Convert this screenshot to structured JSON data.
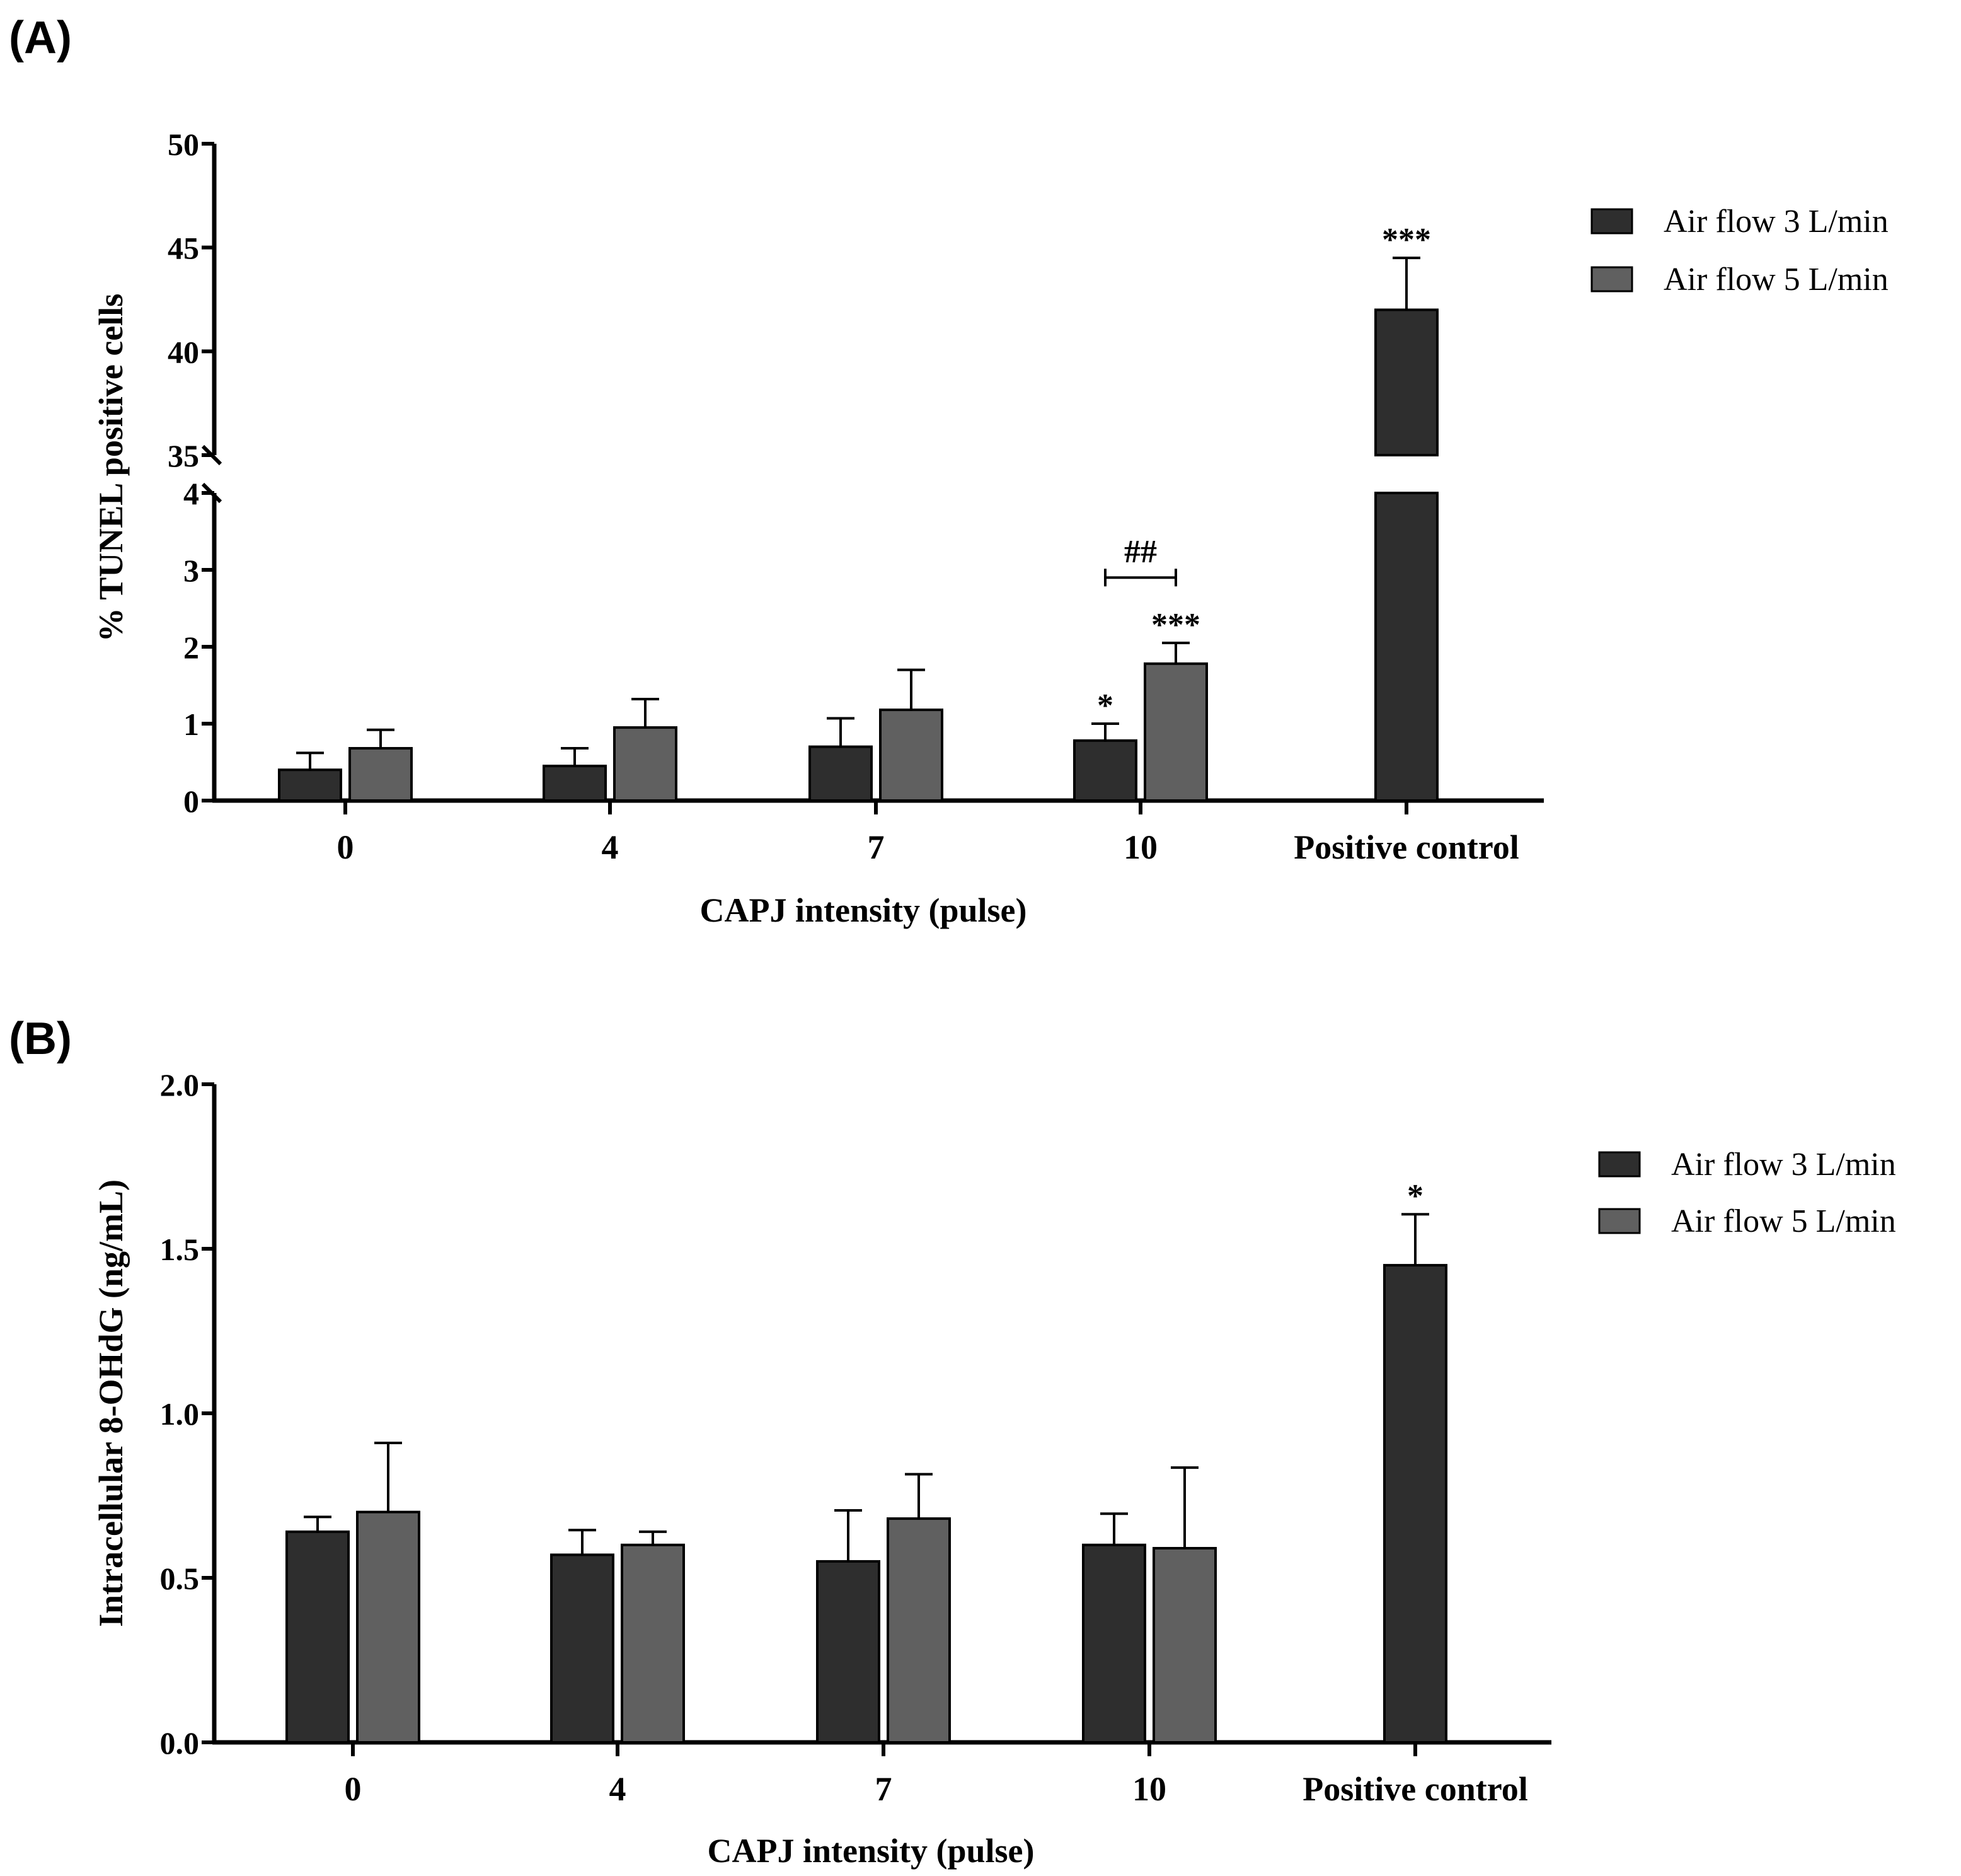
{
  "panels": [
    {
      "label": "(A)",
      "chart_data": {
        "type": "bar",
        "title": "",
        "xlabel": "CAPJ intensity (pulse)",
        "ylabel": "% TUNEL positive cells",
        "categories": [
          "0",
          "4",
          "7",
          "10",
          "Positive control"
        ],
        "series": [
          {
            "name": "Air flow 3 L/min",
            "color": "#2e2e2e",
            "values": [
              0.4,
              0.45,
              0.7,
              0.78,
              42.0
            ],
            "errors": [
              0.22,
              0.23,
              0.37,
              0.22,
              2.5
            ]
          },
          {
            "name": "Air flow 5 L/min",
            "color": "#606060",
            "values": [
              0.68,
              0.95,
              1.18,
              1.78,
              null
            ],
            "errors": [
              0.24,
              0.37,
              0.52,
              0.27,
              null
            ]
          }
        ],
        "ylim": [
          0,
          50
        ],
        "y_break": [
          4,
          35
        ],
        "yticks": [
          "0",
          "1",
          "2",
          "3",
          "4",
          "35",
          "40",
          "45",
          "50"
        ],
        "annotations": [
          {
            "text": "*",
            "category": "10",
            "series": "Air flow 3 L/min"
          },
          {
            "text": "***",
            "category": "10",
            "series": "Air flow 5 L/min"
          },
          {
            "text": "***",
            "category": "Positive control",
            "series": "Air flow 3 L/min"
          },
          {
            "text": "##",
            "type": "bracket",
            "category": "10",
            "y": 2.9
          }
        ],
        "legend": "top-right"
      }
    },
    {
      "label": "(B)",
      "chart_data": {
        "type": "bar",
        "title": "",
        "xlabel": "CAPJ intensity (pulse)",
        "ylabel": "Intracellular 8-OHdG (ng/mL)",
        "categories": [
          "0",
          "4",
          "7",
          "10",
          "Positive control"
        ],
        "series": [
          {
            "name": "Air flow 3 L/min",
            "color": "#2e2e2e",
            "values": [
              0.64,
              0.57,
              0.55,
              0.6,
              1.45
            ],
            "errors": [
              0.045,
              0.075,
              0.155,
              0.095,
              0.155
            ]
          },
          {
            "name": "Air flow 5 L/min",
            "color": "#606060",
            "values": [
              0.7,
              0.6,
              0.68,
              0.59,
              null
            ],
            "errors": [
              0.21,
              0.04,
              0.135,
              0.245,
              null
            ]
          }
        ],
        "ylim": [
          0,
          2.0
        ],
        "yticks": [
          "0.0",
          "0.5",
          "1.0",
          "1.5",
          "2.0"
        ],
        "annotations": [
          {
            "text": "*",
            "category": "Positive control",
            "series": "Air flow 3 L/min"
          }
        ],
        "legend": "top-right"
      }
    }
  ]
}
